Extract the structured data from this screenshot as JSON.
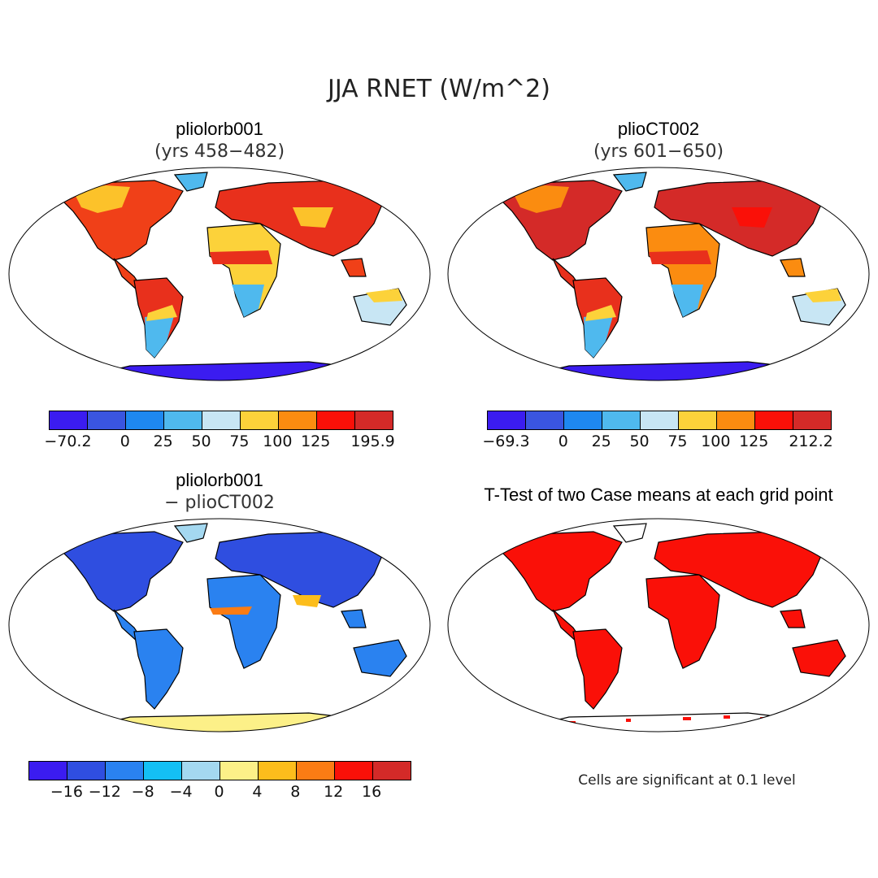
{
  "figure_title": "JJA RNET (W/m^2)",
  "panels": [
    {
      "title": "pliolorb001",
      "subtitle": "(yrs 458−482)",
      "colorbar": {
        "colors": [
          "#3b1cf0",
          "#3a55e0",
          "#1e88f0",
          "#4fb9ee",
          "#c8e6f4",
          "#fcd23a",
          "#fb8c10",
          "#fa1008",
          "#d42a28"
        ],
        "labels": [
          "−70.2",
          "0",
          "25",
          "50",
          "75",
          "100",
          "125",
          "195.9"
        ]
      }
    },
    {
      "title": "plioCT002",
      "subtitle": "(yrs 601−650)",
      "colorbar": {
        "colors": [
          "#3b1cf0",
          "#3a55e0",
          "#1e88f0",
          "#4fb9ee",
          "#c8e6f4",
          "#fcd23a",
          "#fb8c10",
          "#fa1008",
          "#d42a28"
        ],
        "labels": [
          "−69.3",
          "0",
          "25",
          "50",
          "75",
          "100",
          "125",
          "212.2"
        ]
      }
    },
    {
      "title": "pliolorb001",
      "subtitle": "− plioCT002",
      "colorbar": {
        "colors": [
          "#3b1cf0",
          "#2f4ee0",
          "#2a82f0",
          "#14c0f4",
          "#a4d8f0",
          "#fcf088",
          "#fcbd1c",
          "#fb7c14",
          "#fa1008",
          "#d42a28"
        ],
        "labels": [
          "−16",
          "−12",
          "−8",
          "−4",
          "0",
          "4",
          "8",
          "12",
          "16"
        ]
      }
    },
    {
      "title": "T-Test of two Case means at each grid point",
      "note": "Cells are significant at 0.1 level"
    }
  ]
}
